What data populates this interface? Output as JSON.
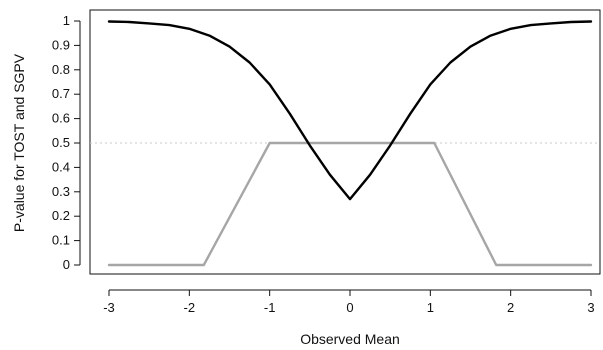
{
  "chart_data": {
    "type": "line",
    "xlabel": "Observed Mean",
    "ylabel": "P-value for TOST and SGPV",
    "xlim": [
      -3,
      3
    ],
    "ylim": [
      0,
      1
    ],
    "x_ticks": [
      -3,
      -2,
      -1,
      0,
      1,
      2,
      3
    ],
    "x_tick_labels": [
      "-3",
      "-2",
      "-1",
      "0",
      "1",
      "2",
      "3"
    ],
    "y_ticks": [
      0,
      0.1,
      0.2,
      0.3,
      0.4,
      0.5,
      0.6,
      0.7,
      0.8,
      0.9,
      1
    ],
    "y_tick_labels": [
      "0",
      "0.1",
      "0.2",
      "0.3",
      "0.4",
      "0.5",
      "0.6",
      "0.7",
      "0.8",
      "0.9",
      "1"
    ],
    "reference_line_y": 0.5,
    "series": [
      {
        "color": "#000000",
        "x": [
          -3.0,
          -2.75,
          -2.5,
          -2.25,
          -2.0,
          -1.75,
          -1.5,
          -1.25,
          -1.0,
          -0.75,
          -0.5,
          -0.25,
          0.0,
          0.25,
          0.5,
          0.75,
          1.0,
          1.25,
          1.5,
          1.75,
          2.0,
          2.25,
          2.5,
          2.75,
          3.0
        ],
        "y": [
          0.998,
          0.996,
          0.99,
          0.983,
          0.968,
          0.94,
          0.895,
          0.83,
          0.74,
          0.62,
          0.49,
          0.37,
          0.27,
          0.37,
          0.49,
          0.62,
          0.74,
          0.83,
          0.895,
          0.94,
          0.968,
          0.983,
          0.99,
          0.996,
          0.998
        ]
      },
      {
        "color": "#a6a6a6",
        "x": [
          -3.0,
          -1.82,
          -1.0,
          1.05,
          1.82,
          3.0
        ],
        "y": [
          0.0,
          0.0,
          0.5,
          0.5,
          0.0,
          0.0
        ]
      }
    ]
  }
}
